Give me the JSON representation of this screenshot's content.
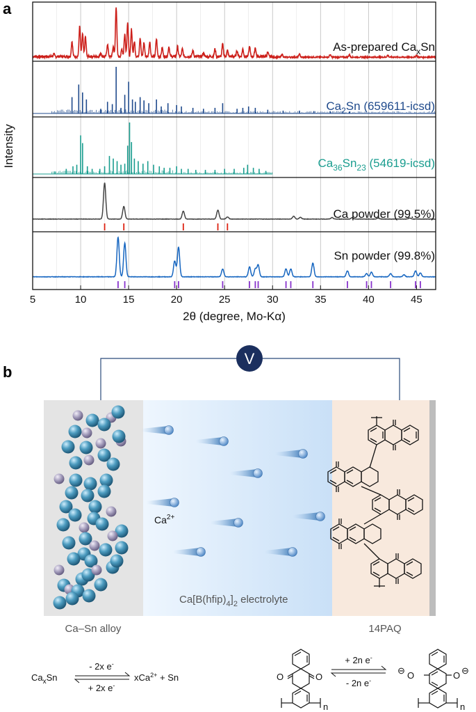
{
  "figure": {
    "panel_a_letter": "a",
    "panel_b_letter": "b",
    "volt_label": "V",
    "electrolyte": {
      "pre": "Ca[B(hfip)",
      "sub": "4",
      "mid": "]",
      "sub2": "2",
      "post": " electrolyte"
    },
    "ion_label": {
      "base": "Ca",
      "sup": "2+"
    },
    "left_caption": "Ca–Sn alloy",
    "right_caption": "14PAQ",
    "eq_left": {
      "reactant": "Ca",
      "reactant_sub": "x",
      "reactant_tail": "Sn",
      "top": "- 2x e",
      "bottom": "+ 2x e",
      "electron_sup": "-",
      "product_pre": "xCa",
      "product_sup": "2+",
      "product_post": " + Sn"
    },
    "eq_right": {
      "top": "+ 2n e",
      "bottom": "- 2n e",
      "electron_sup": "-",
      "n": "n",
      "o": "O",
      "minus": "⊖"
    }
  },
  "chart_data": {
    "type": "line",
    "xlabel": "2θ (degree, Mo-Kα)",
    "ylabel": "Intensity",
    "xlim": [
      5,
      47
    ],
    "xticks": [
      5,
      10,
      15,
      20,
      25,
      30,
      35,
      40,
      45
    ],
    "grid": "vertical",
    "series": [
      {
        "name": "As-prepared CaxSn",
        "label": {
          "pre": "As-prepared Ca",
          "sub": "x",
          "post": "Sn"
        },
        "style": "line",
        "color": "#cc1f1a",
        "peaks": [
          [
            7.2,
            0.05
          ],
          [
            9.1,
            0.3
          ],
          [
            9.9,
            0.6
          ],
          [
            10.2,
            0.45
          ],
          [
            10.5,
            0.4
          ],
          [
            12.1,
            0.08
          ],
          [
            12.8,
            0.25
          ],
          [
            13.4,
            0.2
          ],
          [
            13.7,
            1.0
          ],
          [
            14.3,
            0.15
          ],
          [
            14.6,
            0.45
          ],
          [
            14.9,
            0.7
          ],
          [
            15.3,
            0.55
          ],
          [
            15.6,
            0.3
          ],
          [
            16.2,
            0.38
          ],
          [
            16.6,
            0.28
          ],
          [
            17.2,
            0.3
          ],
          [
            17.9,
            0.35
          ],
          [
            18.5,
            0.18
          ],
          [
            19.2,
            0.2
          ],
          [
            20.1,
            0.2
          ],
          [
            20.6,
            0.15
          ],
          [
            21.7,
            0.12
          ],
          [
            22.8,
            0.08
          ],
          [
            24.0,
            0.15
          ],
          [
            24.8,
            0.25
          ],
          [
            25.3,
            0.12
          ],
          [
            26.3,
            0.12
          ],
          [
            26.9,
            0.15
          ],
          [
            27.6,
            0.2
          ],
          [
            28.2,
            0.18
          ],
          [
            29.5,
            0.08
          ],
          [
            31.0,
            0.06
          ],
          [
            32.8,
            0.06
          ],
          [
            36.0,
            0.05
          ],
          [
            38.0,
            0.05
          ],
          [
            42.0,
            0.04
          ],
          [
            45.0,
            0.04
          ]
        ],
        "noise": 0.05
      },
      {
        "name": "Ca2Sn (659611-icsd)",
        "label": {
          "pre": "Ca",
          "sub": "2",
          "post": "Sn (659611-icsd)"
        },
        "style": "sticks",
        "color": "#1f4a8c",
        "sticks": [
          [
            9.1,
            0.35
          ],
          [
            9.8,
            0.62
          ],
          [
            10.2,
            0.45
          ],
          [
            10.6,
            0.3
          ],
          [
            12.1,
            0.1
          ],
          [
            12.8,
            0.25
          ],
          [
            13.3,
            0.2
          ],
          [
            13.7,
            1.0
          ],
          [
            14.2,
            0.12
          ],
          [
            14.6,
            0.4
          ],
          [
            15.0,
            0.68
          ],
          [
            15.4,
            0.3
          ],
          [
            15.7,
            0.25
          ],
          [
            16.2,
            0.35
          ],
          [
            16.6,
            0.28
          ],
          [
            17.1,
            0.22
          ],
          [
            17.9,
            0.3
          ],
          [
            18.4,
            0.15
          ],
          [
            19.1,
            0.22
          ],
          [
            20.0,
            0.18
          ],
          [
            20.5,
            0.15
          ],
          [
            21.7,
            0.12
          ],
          [
            22.8,
            0.1
          ],
          [
            24.0,
            0.12
          ],
          [
            24.8,
            0.22
          ],
          [
            26.3,
            0.1
          ],
          [
            26.9,
            0.12
          ],
          [
            27.5,
            0.15
          ],
          [
            28.2,
            0.12
          ],
          [
            29.5,
            0.08
          ],
          [
            31.1,
            0.06
          ],
          [
            32.8,
            0.06
          ],
          [
            34.3,
            0.05
          ],
          [
            36.0,
            0.05
          ],
          [
            38.0,
            0.04
          ]
        ],
        "dense_fill": 0.05
      },
      {
        "name": "Ca36Sn23 (54619-icsd)",
        "label": {
          "pre": "Ca",
          "sub": "36",
          "mid": "Sn",
          "sub2": "23",
          "post": " (54619-icsd)"
        },
        "style": "sticks",
        "color": "#1a9d8f",
        "sticks": [
          [
            7.3,
            0.05
          ],
          [
            8.5,
            0.1
          ],
          [
            9.2,
            0.15
          ],
          [
            9.6,
            0.18
          ],
          [
            10.0,
            0.75
          ],
          [
            10.2,
            0.6
          ],
          [
            10.7,
            0.15
          ],
          [
            11.2,
            0.1
          ],
          [
            12.0,
            0.1
          ],
          [
            12.5,
            0.15
          ],
          [
            13.0,
            0.35
          ],
          [
            13.4,
            0.3
          ],
          [
            13.8,
            0.25
          ],
          [
            14.2,
            0.18
          ],
          [
            14.6,
            0.2
          ],
          [
            14.9,
            0.55
          ],
          [
            15.1,
            1.0
          ],
          [
            15.3,
            0.62
          ],
          [
            15.6,
            0.3
          ],
          [
            16.0,
            0.25
          ],
          [
            16.5,
            0.2
          ],
          [
            17.0,
            0.25
          ],
          [
            17.6,
            0.18
          ],
          [
            18.2,
            0.15
          ],
          [
            18.7,
            0.12
          ],
          [
            19.3,
            0.12
          ],
          [
            20.0,
            0.15
          ],
          [
            20.5,
            0.1
          ],
          [
            21.2,
            0.1
          ],
          [
            22.0,
            0.08
          ],
          [
            23.0,
            0.08
          ],
          [
            24.0,
            0.08
          ],
          [
            25.0,
            0.1
          ],
          [
            26.0,
            0.1
          ],
          [
            27.0,
            0.12
          ],
          [
            27.4,
            0.18
          ],
          [
            28.0,
            0.12
          ],
          [
            28.6,
            0.1
          ],
          [
            29.3,
            0.06
          ]
        ],
        "dense_fill": 0.04,
        "x_end": 30
      },
      {
        "name": "Ca powder (99.5%)",
        "label": {
          "pre": "Ca powder (99.5%)"
        },
        "style": "line",
        "color": "#444444",
        "peaks": [
          [
            12.5,
            1.0
          ],
          [
            14.5,
            0.35
          ],
          [
            20.7,
            0.22
          ],
          [
            24.3,
            0.25
          ],
          [
            25.3,
            0.06
          ],
          [
            32.2,
            0.08
          ],
          [
            32.9,
            0.05
          ],
          [
            36.2,
            0.04
          ],
          [
            38.3,
            0.04
          ],
          [
            41.0,
            0.03
          ],
          [
            44.3,
            0.03
          ]
        ],
        "markers": {
          "color": "#dd2211",
          "x": [
            12.5,
            14.5,
            20.7,
            24.3,
            25.3
          ]
        }
      },
      {
        "name": "Sn powder (99.8%)",
        "label": {
          "pre": "Sn powder (99.8%)"
        },
        "style": "line",
        "color": "#1565c0",
        "peaks": [
          [
            13.9,
            1.0
          ],
          [
            14.6,
            0.85
          ],
          [
            19.8,
            0.4
          ],
          [
            20.2,
            0.75
          ],
          [
            24.8,
            0.2
          ],
          [
            27.6,
            0.25
          ],
          [
            28.2,
            0.2
          ],
          [
            28.5,
            0.3
          ],
          [
            31.4,
            0.2
          ],
          [
            31.9,
            0.2
          ],
          [
            34.2,
            0.35
          ],
          [
            37.8,
            0.15
          ],
          [
            39.8,
            0.08
          ],
          [
            40.3,
            0.12
          ],
          [
            42.3,
            0.08
          ],
          [
            43.7,
            0.05
          ],
          [
            44.9,
            0.15
          ],
          [
            45.4,
            0.1
          ]
        ],
        "markers": {
          "color": "#8833cc",
          "x": [
            13.9,
            14.6,
            19.8,
            20.2,
            24.8,
            27.6,
            28.2,
            28.5,
            31.4,
            31.9,
            34.2,
            37.8,
            39.8,
            40.3,
            42.3,
            44.9,
            45.4
          ]
        }
      }
    ]
  },
  "colors": {
    "anode": "#e4e4e4",
    "cathode": "#f8e9dd",
    "volt_circle": "#1b2f5e",
    "sphere_blue": "#3e86a8",
    "sphere_purple": "#9a93b5"
  }
}
